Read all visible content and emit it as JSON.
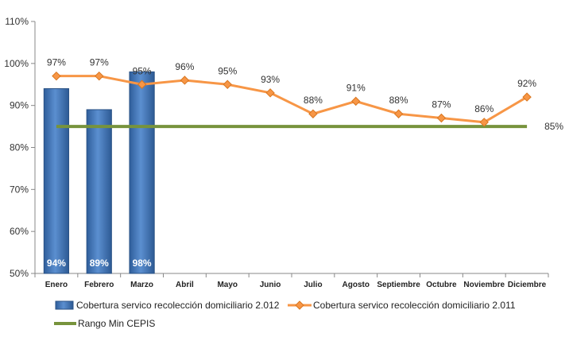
{
  "chart_data": {
    "type": "bar+line",
    "categories": [
      "Enero",
      "Febrero",
      "Marzo",
      "Abril",
      "Mayo",
      "Junio",
      "Julio",
      "Agosto",
      "Septiembre",
      "Octubre",
      "Noviembre",
      "Diciembre"
    ],
    "ylim": [
      50,
      110
    ],
    "yticks": [
      "50%",
      "60%",
      "70%",
      "80%",
      "90%",
      "100%",
      "110%"
    ],
    "ytick_values": [
      50,
      60,
      70,
      80,
      90,
      100,
      110
    ],
    "grid": false,
    "legend_position": "bottom",
    "series": [
      {
        "name": "Cobertura servico recolección domiciliario 2.012",
        "type": "bar",
        "color": "#4f81bd",
        "values": [
          94,
          89,
          98,
          null,
          null,
          null,
          null,
          null,
          null,
          null,
          null,
          null
        ],
        "labels": [
          "94%",
          "89%",
          "98%"
        ]
      },
      {
        "name": "Cobertura servico recolección domiciliario 2.011",
        "type": "line",
        "color": "#f79646",
        "values": [
          97,
          97,
          95,
          96,
          95,
          93,
          88,
          91,
          88,
          87,
          86,
          92
        ],
        "labels": [
          "97%",
          "97%",
          "95%",
          "96%",
          "95%",
          "93%",
          "88%",
          "91%",
          "88%",
          "87%",
          "86%",
          "92%"
        ]
      },
      {
        "name": "Rango Min CEPIS",
        "type": "line",
        "color": "#77933c",
        "values": [
          85,
          85,
          85,
          85,
          85,
          85,
          85,
          85,
          85,
          85,
          85,
          85
        ],
        "labels": [
          "85%"
        ]
      }
    ]
  }
}
